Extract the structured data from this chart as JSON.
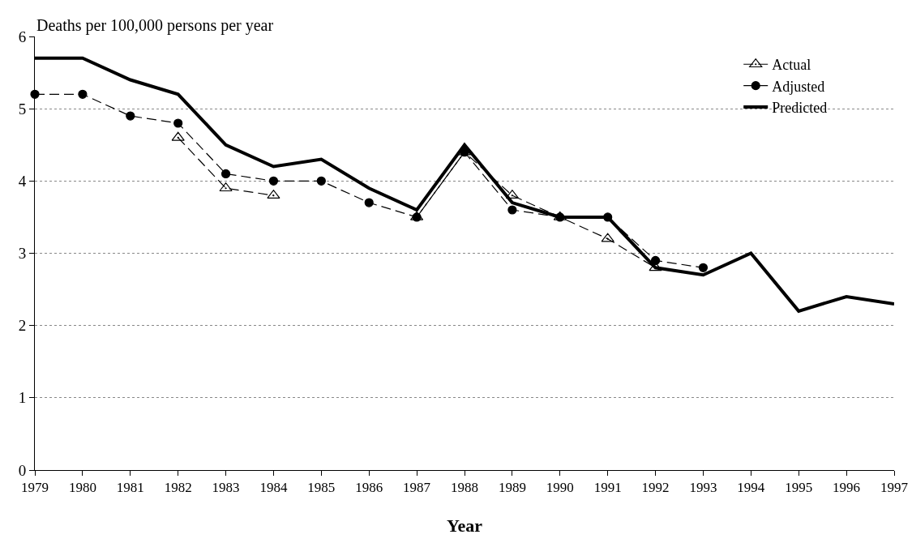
{
  "chart_data": {
    "type": "line",
    "ylabel": "Deaths per 100,000 persons per year",
    "xlabel": "Year",
    "x": [
      1979,
      1980,
      1981,
      1982,
      1983,
      1984,
      1985,
      1986,
      1987,
      1988,
      1989,
      1990,
      1991,
      1992,
      1993,
      1994,
      1995,
      1996,
      1997
    ],
    "series": [
      {
        "name": "Actual",
        "color": "#000000",
        "marker": "triangle",
        "line_style": "dashed",
        "values": [
          null,
          null,
          null,
          4.6,
          3.9,
          3.8,
          null,
          null,
          3.5,
          4.4,
          3.8,
          3.5,
          3.2,
          2.8,
          null,
          null,
          null,
          null,
          null
        ]
      },
      {
        "name": "Adjusted",
        "color": "#000000",
        "marker": "circle",
        "line_style": "dashed",
        "values": [
          5.2,
          5.2,
          4.9,
          4.8,
          4.1,
          4.0,
          4.0,
          3.7,
          3.5,
          4.4,
          3.6,
          3.5,
          3.5,
          2.9,
          2.8,
          null,
          null,
          null,
          null
        ]
      },
      {
        "name": "Predicted",
        "color": "#000000",
        "marker": "none",
        "line_style": "solid",
        "values": [
          5.7,
          5.7,
          5.4,
          5.2,
          4.5,
          4.2,
          4.3,
          3.9,
          3.6,
          4.5,
          3.7,
          3.5,
          3.5,
          2.8,
          2.7,
          3.0,
          2.2,
          2.4,
          2.3
        ]
      }
    ],
    "xlim": [
      1979,
      1997
    ],
    "xticks": [
      1979,
      1980,
      1981,
      1982,
      1983,
      1984,
      1985,
      1986,
      1987,
      1988,
      1989,
      1990,
      1991,
      1992,
      1993,
      1994,
      1995,
      1996,
      1997
    ],
    "ylim": [
      0,
      6
    ],
    "yticks": [
      0,
      1,
      2,
      3,
      4,
      5,
      6
    ],
    "grid": "y",
    "legend": "top right"
  }
}
